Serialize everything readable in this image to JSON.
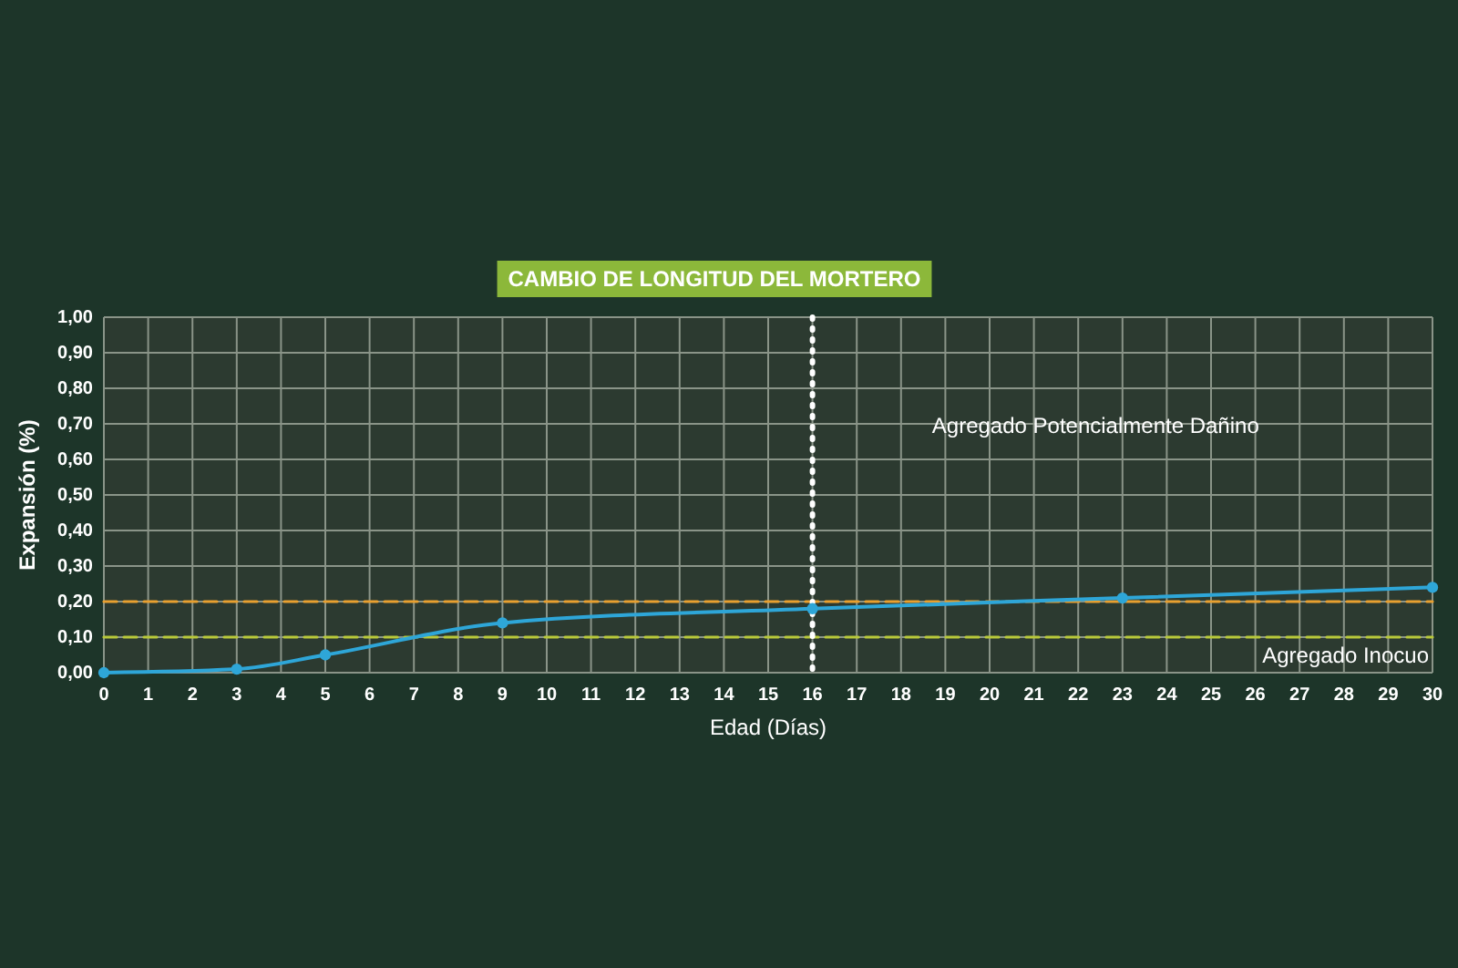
{
  "chart_data": {
    "type": "line",
    "title": "CAMBIO DE LONGITUD DEL MORTERO",
    "xlabel": "Edad (Días)",
    "ylabel": "Expansión (%)",
    "x": [
      0,
      3,
      5,
      9,
      16,
      23,
      30
    ],
    "series": [
      {
        "color": "#2ea6d8",
        "values": [
          0,
          0.01,
          0.05,
          0.14,
          0.18,
          0.21,
          0.24
        ]
      }
    ],
    "xlim": [
      0,
      30
    ],
    "xticks": [
      0,
      1,
      2,
      3,
      4,
      5,
      6,
      7,
      8,
      9,
      10,
      11,
      12,
      13,
      14,
      15,
      16,
      17,
      18,
      19,
      20,
      21,
      22,
      23,
      24,
      25,
      26,
      27,
      28,
      29,
      30
    ],
    "ylim": [
      0,
      1
    ],
    "yticks": [
      {
        "value": 0,
        "label": "0,00"
      },
      {
        "value": 0.1,
        "label": "0,10"
      },
      {
        "value": 0.2,
        "label": "0,20"
      },
      {
        "value": 0.3,
        "label": "0,30"
      },
      {
        "value": 0.4,
        "label": "0,40"
      },
      {
        "value": 0.5,
        "label": "0,50"
      },
      {
        "value": 0.6,
        "label": "0,60"
      },
      {
        "value": 0.7,
        "label": "0,70"
      },
      {
        "value": 0.8,
        "label": "0,80"
      },
      {
        "value": 0.9,
        "label": "0,90"
      },
      {
        "value": 1,
        "label": "1,00"
      }
    ],
    "grid": true,
    "marker": "circle",
    "line_style": "solid",
    "ref_lines": [
      {
        "axis": "y",
        "value": 0.2,
        "color": "#e8a030",
        "line_style": "dashed"
      },
      {
        "axis": "y",
        "value": 0.1,
        "color": "#b8c83a",
        "line_style": "dashed"
      },
      {
        "axis": "x",
        "value": 16,
        "color": "#ffffff",
        "line_style": "dotted"
      }
    ],
    "annotations": [
      "Agregado Potencialmente Dañino",
      "Agregado Inocuo"
    ]
  }
}
